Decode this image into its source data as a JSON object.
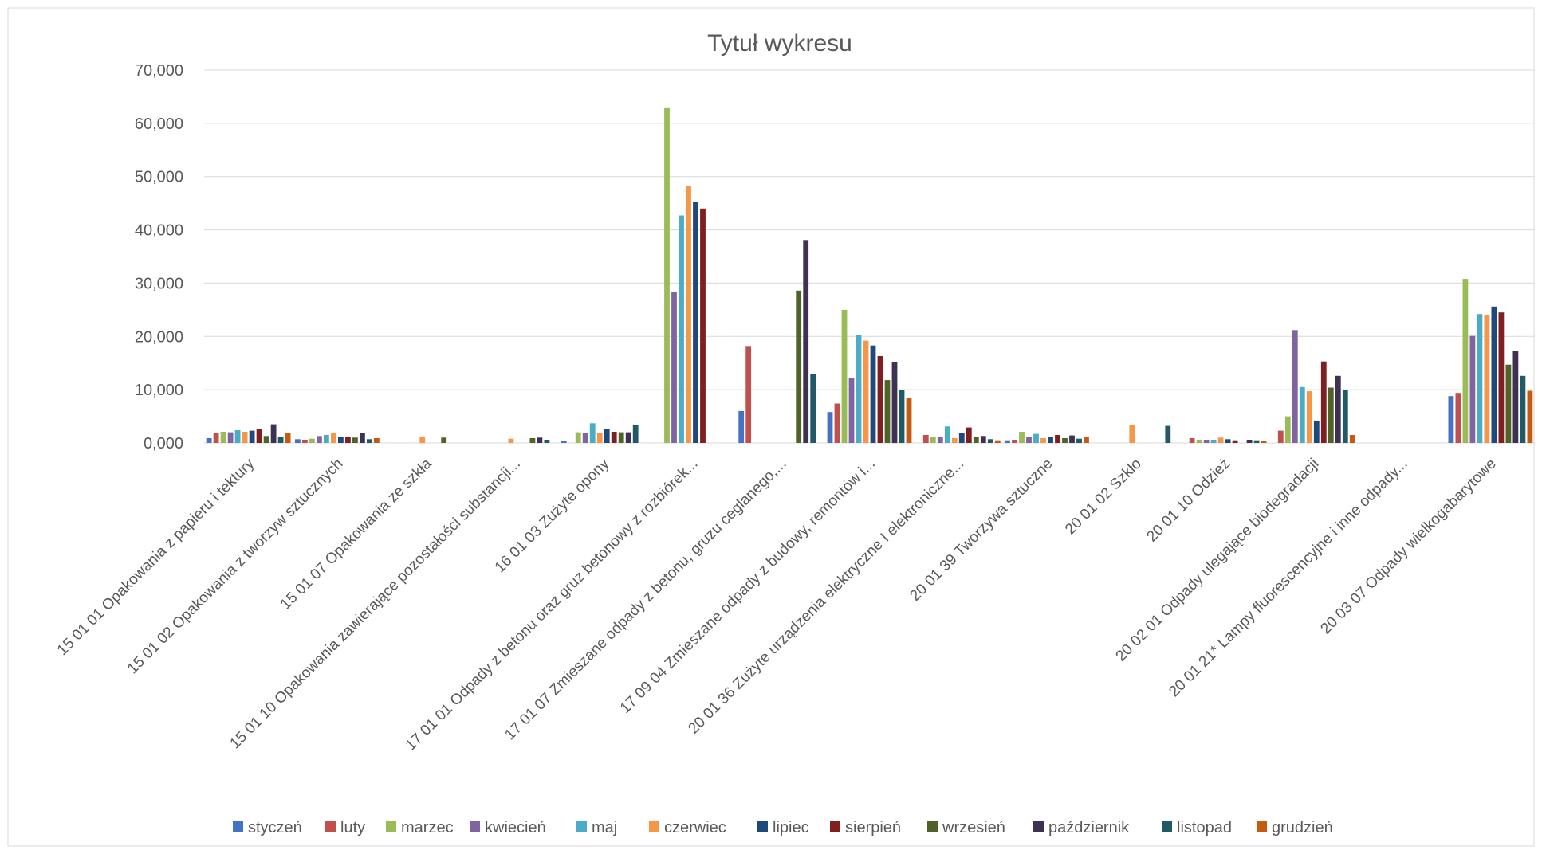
{
  "chart_data": {
    "type": "bar",
    "title": "Tytuł wykresu",
    "xlabel": "",
    "ylabel": "",
    "ylim": [
      0,
      70000
    ],
    "yticks": [
      "0,000",
      "10,000",
      "20,000",
      "30,000",
      "40,000",
      "50,000",
      "60,000",
      "70,000"
    ],
    "grid": true,
    "legend_position": "bottom",
    "categories": [
      "15 01 01 Opakowania z papieru i tektury",
      "15 01 02 Opakowania z tworzyw sztucznych",
      "15 01 07 Opakowania ze szkła",
      "15 01 10 Opakowania zawierające pozostałości substancji...",
      "16 01 03 Zużyte opony",
      "17 01 01  Odpady z betonu oraz gruz betonowy z rozbiórek...",
      "17 01 07 Zmieszane odpady z betonu, gruzu ceglanego,...",
      "17 09 04 Zmieszane odpady z budowy, remontów i...",
      "20 01 36 Zużyte urządzenia elektryczne I elektroniczne...",
      "20 01 39 Tworzywa sztuczne",
      "20 01 02 Szkło",
      "20 01 10 Odzież",
      "20 02 01 Odpady ulegające biodegradacji",
      "20 01 21* Lampy fluorescencyjne i inne odpady...",
      "20 03 07 Odpady wielkogabarytowe"
    ],
    "series": [
      {
        "name": "styczeń",
        "color": "#4472C4",
        "values": [
          900,
          700,
          0,
          0,
          400,
          0,
          6000,
          5800,
          0,
          500,
          0,
          0,
          0,
          0,
          8800
        ]
      },
      {
        "name": "luty",
        "color": "#C0504D",
        "values": [
          1800,
          600,
          0,
          0,
          0,
          0,
          18200,
          7400,
          1500,
          600,
          0,
          900,
          2300,
          0,
          9400
        ]
      },
      {
        "name": "marzec",
        "color": "#9BBB59",
        "values": [
          2100,
          800,
          0,
          0,
          2000,
          63000,
          0,
          25000,
          1100,
          2100,
          0,
          600,
          5000,
          0,
          30800
        ]
      },
      {
        "name": "kwiecień",
        "color": "#8064A2",
        "values": [
          2000,
          1300,
          0,
          0,
          1800,
          28300,
          0,
          12200,
          1200,
          1200,
          0,
          600,
          21200,
          0,
          20100
        ]
      },
      {
        "name": "maj",
        "color": "#4BACC6",
        "values": [
          2400,
          1500,
          0,
          0,
          3700,
          42700,
          0,
          20300,
          3100,
          1700,
          0,
          600,
          10500,
          0,
          24200
        ]
      },
      {
        "name": "czerwiec",
        "color": "#F79646",
        "values": [
          2100,
          1800,
          1100,
          800,
          1800,
          48300,
          0,
          19200,
          900,
          900,
          3400,
          1000,
          9700,
          0,
          24000
        ]
      },
      {
        "name": "lipiec",
        "color": "#1F497D",
        "values": [
          2300,
          1200,
          0,
          0,
          2600,
          45300,
          0,
          18300,
          1800,
          1100,
          0,
          700,
          4200,
          0,
          25600
        ]
      },
      {
        "name": "sierpień",
        "color": "#7F1F1F",
        "values": [
          2600,
          1200,
          0,
          0,
          2100,
          44000,
          0,
          16300,
          2900,
          1500,
          0,
          500,
          15300,
          0,
          24500
        ]
      },
      {
        "name": "wrzesień",
        "color": "#4F6228",
        "values": [
          1300,
          1000,
          1000,
          900,
          2000,
          0,
          28600,
          11800,
          1200,
          900,
          0,
          0,
          10400,
          0,
          14700
        ]
      },
      {
        "name": "październik",
        "color": "#3F3151",
        "values": [
          3500,
          1900,
          0,
          1000,
          2000,
          0,
          38100,
          15100,
          1300,
          1400,
          0,
          600,
          12600,
          0,
          17200
        ]
      },
      {
        "name": "listopad",
        "color": "#215967",
        "values": [
          1100,
          700,
          0,
          600,
          3300,
          0,
          13000,
          9900,
          700,
          800,
          3200,
          500,
          10000,
          0,
          12600
        ]
      },
      {
        "name": "grudzień",
        "color": "#C55A11",
        "values": [
          1800,
          900,
          0,
          0,
          0,
          0,
          0,
          8500,
          500,
          1200,
          0,
          400,
          1500,
          0,
          9800
        ]
      }
    ]
  }
}
